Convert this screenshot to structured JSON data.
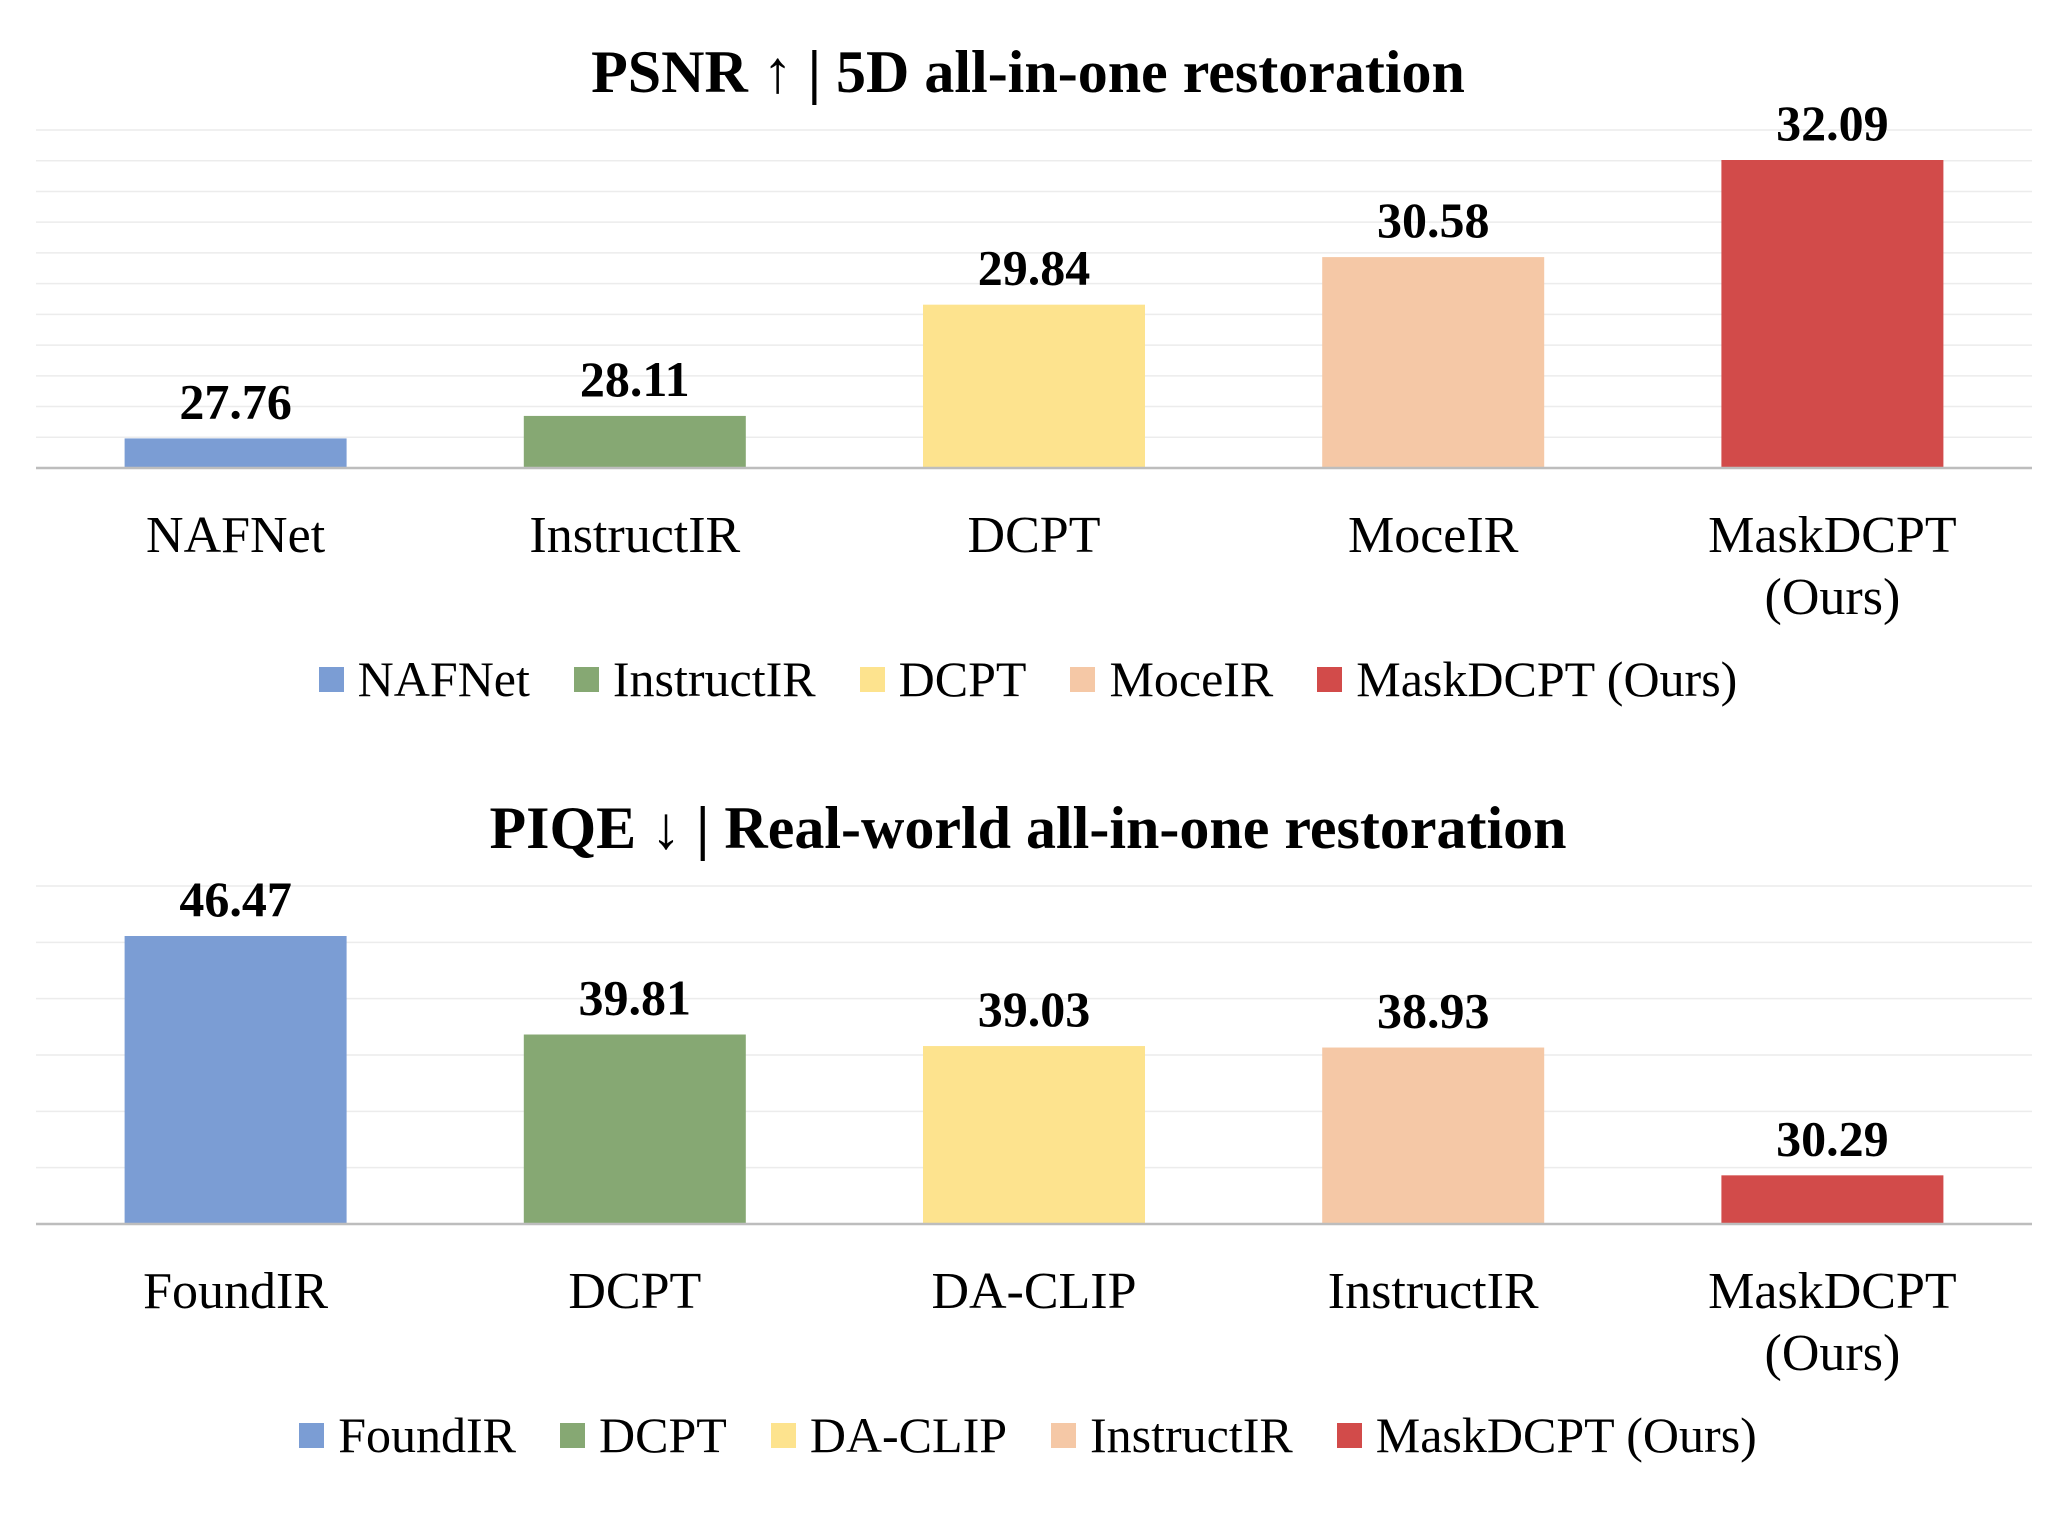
{
  "chart_data": [
    {
      "type": "bar",
      "title": "PSNR ↑ | 5D all-in-one restoration",
      "categories": [
        "NAFNet",
        "InstructIR",
        "DCPT",
        "MoceIR",
        "MaskDCPT\n(Ours)"
      ],
      "values": [
        27.76,
        28.11,
        29.84,
        30.58,
        32.09
      ],
      "value_labels": [
        "27.76",
        "28.11",
        "29.84",
        "30.58",
        "32.09"
      ],
      "colors": [
        "#7b9dd4",
        "#86a873",
        "#fde38e",
        "#f5c8a6",
        "#d24b4a"
      ],
      "legend": [
        "NAFNet",
        "InstructIR",
        "DCPT",
        "MoceIR",
        "MaskDCPT (Ours)"
      ],
      "legend_position": "bottom",
      "grid": true,
      "xlabel": "",
      "ylabel": ""
    },
    {
      "type": "bar",
      "title": "PIQE ↓ | Real-world all-in-one restoration",
      "categories": [
        "FoundIR",
        "DCPT",
        "DA-CLIP",
        "InstructIR",
        "MaskDCPT\n(Ours)"
      ],
      "values": [
        46.47,
        39.81,
        39.03,
        38.93,
        30.29
      ],
      "value_labels": [
        "46.47",
        "39.81",
        "39.03",
        "38.93",
        "30.29"
      ],
      "colors": [
        "#7b9dd4",
        "#86a873",
        "#fde38e",
        "#f5c8a6",
        "#d24b4a"
      ],
      "legend": [
        "FoundIR",
        "DCPT",
        "DA-CLIP",
        "InstructIR",
        "MaskDCPT (Ours)"
      ],
      "legend_position": "bottom",
      "grid": true,
      "xlabel": "",
      "ylabel": ""
    }
  ]
}
